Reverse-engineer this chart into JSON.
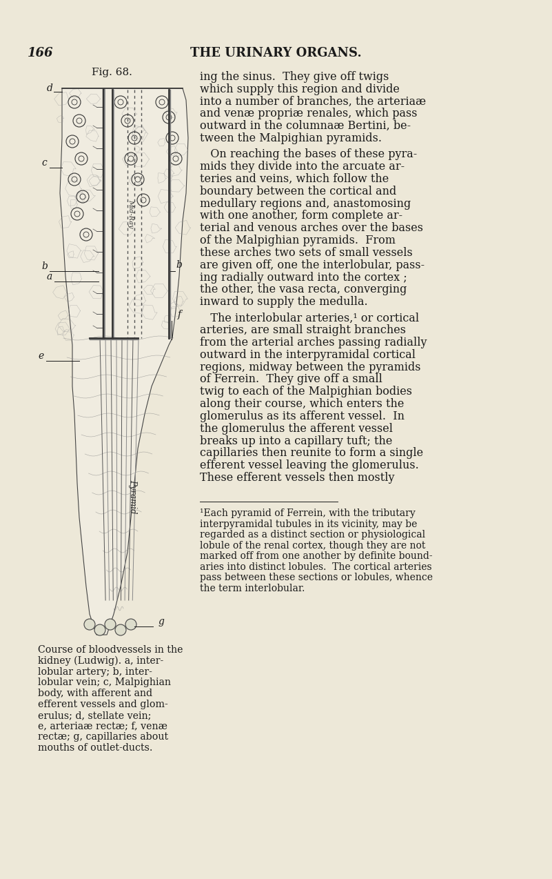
{
  "bg_color": "#EDE8D8",
  "page_number": "166",
  "header_title": "THE URINARY ORGANS.",
  "fig_label": "Fig. 68.",
  "caption_lines": [
    "Course of bloodvessels in the",
    "kidney (Ludwig). a, inter-",
    "lobular artery; b, inter-",
    "lobular vein; c, Malpighian",
    "body, with afferent and",
    "efferent vessels and glom-",
    "erulus; d, stellate vein;",
    "e, arteriaæ rectæ; f, venæ",
    "rectæ; g, capillaries about",
    "mouths of outlet-ducts."
  ],
  "body_text_paragraphs": [
    "ing the sinus.  They give off twigs\nwhich supply this region and divide\ninto a number of branches, the arteriaæ\nand venæ propriæ renales, which pass\noutward in the columnaæ Bertini, be-\ntween the Malpighian pyramids.",
    "   On reaching the bases of these pyra-\nmids they divide into the arcuate ar-\nteries and veins, which follow the\nboundary between the cortical and\nmedullary regions and, anastomosing\nwith one another, form complete ar-\nterial and venous arches over the bases\nof the Malpighian pyramids.  From\nthese arches two sets of small vessels\nare given off, one the interlobular, pass-\ning radially outward into the cortex ;\nthe other, the vasa recta, converging\ninward to supply the medulla.",
    "   The interlobular arteries,¹ or cortical\narteries, are small straight branches\nfrom the arterial arches passing radially\noutward in the interpyramidal cortical\nregions, midway between the pyramids\nof Ferrein.  They give off a small\ntwig to each of the Malpighian bodies\nalong their course, which enters the\nglomerulus as its afferent vessel.  In\nthe glomerulus the afferent vessel\nbreaks up into a capillary tuft; the\ncapillaries then reunite to form a single\nefferent vessel leaving the glomerulus.\nThese efferent vessels then mostly"
  ],
  "footnote_superscript": "¹",
  "footnote_text": "Each pyramid of Ferrein, with the tributary\ninterpyramidal tubules in its vicinity, may be\nregarded as a distinct section or physiological\nlobule of the renal cortex, though they are not\nmarked off from one another by definite bound-\naries into distinct lobules.  The cortical arteries\npass between these sections or lobules, whence\nthe term interlobular.",
  "text_color": "#1a1a1a",
  "header_fontsize": 13,
  "body_fontsize": 11.5,
  "caption_fontsize": 10.2,
  "footnote_fontsize": 10.0
}
